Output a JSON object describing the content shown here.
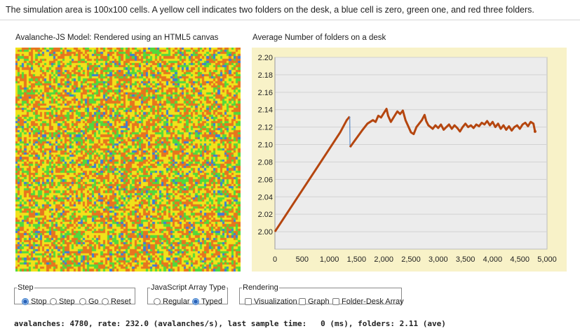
{
  "intro_text": "The simulation area is 100x100 cells. A yellow cell indicates two folders on the desk, a blue cell is zero, green one, and red three folders.",
  "canvas_panel": {
    "title": "Avalanche-JS Model: Rendered using an HTML5 canvas",
    "cell_colors": {
      "zero": "#3b7fd6",
      "one": "#52d93c",
      "two": "#f1e21a",
      "three": "#e7751e"
    }
  },
  "chart_data": {
    "type": "line",
    "title": "Average Number of folders on a desk",
    "xlabel": "",
    "ylabel": "",
    "xlim": [
      0,
      5000
    ],
    "ylim": [
      1.98,
      2.2
    ],
    "x_ticks": [
      "0",
      "500",
      "1,000",
      "1,500",
      "2,000",
      "2,500",
      "3,000",
      "3,500",
      "4,000",
      "4,500",
      "5,000"
    ],
    "y_ticks": [
      "2.00",
      "2.02",
      "2.04",
      "2.06",
      "2.08",
      "2.10",
      "2.12",
      "2.14",
      "2.16",
      "2.18",
      "2.20"
    ],
    "grid": true,
    "series": [
      {
        "color": "#b5460f",
        "points": [
          [
            0,
            2.0
          ],
          [
            200,
            2.019
          ],
          [
            400,
            2.038
          ],
          [
            600,
            2.057
          ],
          [
            800,
            2.076
          ],
          [
            1000,
            2.095
          ],
          [
            1200,
            2.114
          ],
          [
            1320,
            2.128
          ],
          [
            1360,
            2.131
          ],
          [
            1375,
            2.132
          ],
          [
            1380,
            2.097
          ],
          [
            1450,
            2.103
          ],
          [
            1600,
            2.116
          ],
          [
            1700,
            2.124
          ],
          [
            1800,
            2.128
          ],
          [
            1850,
            2.126
          ],
          [
            1900,
            2.133
          ],
          [
            1950,
            2.131
          ],
          [
            2050,
            2.141
          ],
          [
            2080,
            2.133
          ],
          [
            2130,
            2.126
          ],
          [
            2200,
            2.133
          ],
          [
            2250,
            2.138
          ],
          [
            2300,
            2.135
          ],
          [
            2350,
            2.139
          ],
          [
            2400,
            2.128
          ],
          [
            2450,
            2.121
          ],
          [
            2500,
            2.114
          ],
          [
            2550,
            2.112
          ],
          [
            2600,
            2.12
          ],
          [
            2650,
            2.124
          ],
          [
            2700,
            2.128
          ],
          [
            2750,
            2.134
          ],
          [
            2780,
            2.127
          ],
          [
            2820,
            2.122
          ],
          [
            2900,
            2.118
          ],
          [
            2950,
            2.122
          ],
          [
            3000,
            2.119
          ],
          [
            3050,
            2.123
          ],
          [
            3100,
            2.117
          ],
          [
            3150,
            2.12
          ],
          [
            3200,
            2.123
          ],
          [
            3250,
            2.118
          ],
          [
            3300,
            2.122
          ],
          [
            3350,
            2.119
          ],
          [
            3400,
            2.115
          ],
          [
            3450,
            2.12
          ],
          [
            3500,
            2.124
          ],
          [
            3550,
            2.12
          ],
          [
            3600,
            2.122
          ],
          [
            3650,
            2.119
          ],
          [
            3700,
            2.123
          ],
          [
            3750,
            2.121
          ],
          [
            3800,
            2.125
          ],
          [
            3850,
            2.123
          ],
          [
            3900,
            2.127
          ],
          [
            3950,
            2.122
          ],
          [
            4000,
            2.126
          ],
          [
            4050,
            2.12
          ],
          [
            4100,
            2.124
          ],
          [
            4150,
            2.118
          ],
          [
            4200,
            2.122
          ],
          [
            4250,
            2.117
          ],
          [
            4300,
            2.121
          ],
          [
            4350,
            2.116
          ],
          [
            4400,
            2.12
          ],
          [
            4450,
            2.122
          ],
          [
            4500,
            2.118
          ],
          [
            4550,
            2.123
          ],
          [
            4600,
            2.125
          ],
          [
            4650,
            2.121
          ],
          [
            4700,
            2.126
          ],
          [
            4750,
            2.124
          ],
          [
            4780,
            2.115
          ]
        ]
      }
    ]
  },
  "controls": {
    "step": {
      "legend": "Step",
      "options": [
        {
          "label": "Stop",
          "selected": true
        },
        {
          "label": "Step",
          "selected": false
        },
        {
          "label": "Go",
          "selected": false
        },
        {
          "label": "Reset",
          "selected": false
        }
      ]
    },
    "array_type": {
      "legend": "JavaScript Array Type",
      "options": [
        {
          "label": "Regular",
          "selected": false
        },
        {
          "label": "Typed",
          "selected": true
        }
      ]
    },
    "rendering": {
      "legend": "Rendering",
      "options": [
        {
          "label": "Visualization",
          "checked": false
        },
        {
          "label": "Graph",
          "checked": false
        },
        {
          "label": "Folder-Desk Array",
          "checked": false
        }
      ]
    }
  },
  "status_line": "avalanches: 4780, rate: 232.0 (avalanches/s), last sample time:   0 (ms), folders: 2.11 (ave)"
}
